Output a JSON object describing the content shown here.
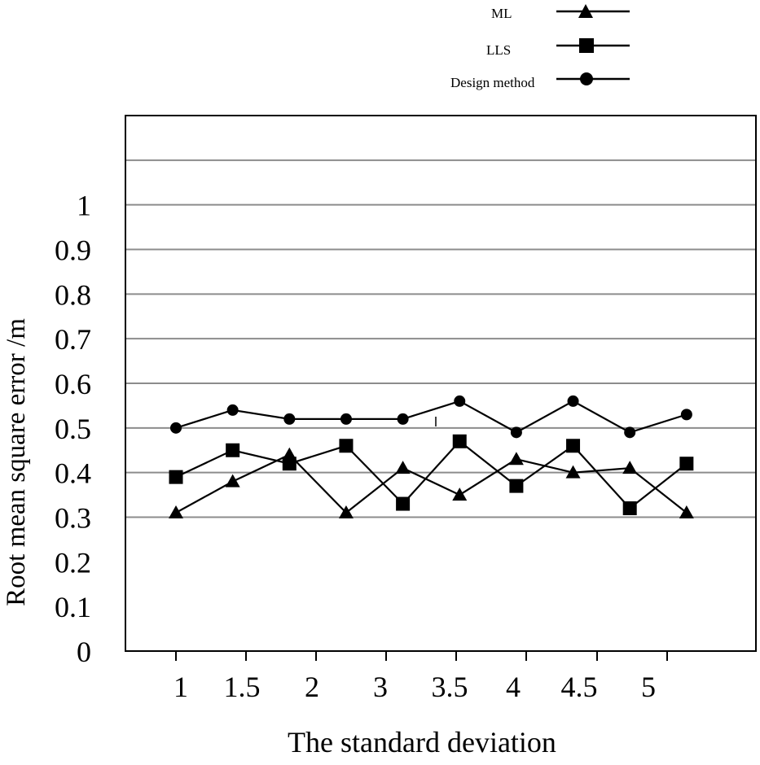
{
  "chart_data": {
    "type": "line",
    "title": "",
    "xlabel": "The standard deviation",
    "ylabel": "Root mean square error /m",
    "x_tick_labels": [
      "1",
      "1.5",
      "2",
      "3",
      "3.5",
      "4",
      "4.5",
      "5"
    ],
    "y_tick_labels": [
      "0",
      "0.1",
      "0.2",
      "0.3",
      "0.4",
      "0.5",
      "0.6",
      "0.7",
      "0.8",
      "0.9",
      "1"
    ],
    "ylim": [
      0,
      1.2
    ],
    "grid": true,
    "legend_position": "top-right",
    "x": [
      0.9,
      1.4,
      1.9,
      2.4,
      2.9,
      3.4,
      3.9,
      4.4,
      4.9,
      5.4
    ],
    "series": [
      {
        "name": "ML",
        "marker": "triangle",
        "values": [
          0.31,
          0.38,
          0.44,
          0.31,
          0.41,
          0.35,
          0.43,
          0.4,
          0.41,
          0.31
        ]
      },
      {
        "name": "LLS",
        "marker": "square",
        "values": [
          0.39,
          0.45,
          0.42,
          0.46,
          0.33,
          0.47,
          0.37,
          0.46,
          0.32,
          0.42
        ]
      },
      {
        "name": "Design method",
        "marker": "circle",
        "values": [
          0.5,
          0.54,
          0.52,
          0.52,
          0.52,
          0.56,
          0.49,
          0.56,
          0.49,
          0.53
        ]
      }
    ]
  }
}
